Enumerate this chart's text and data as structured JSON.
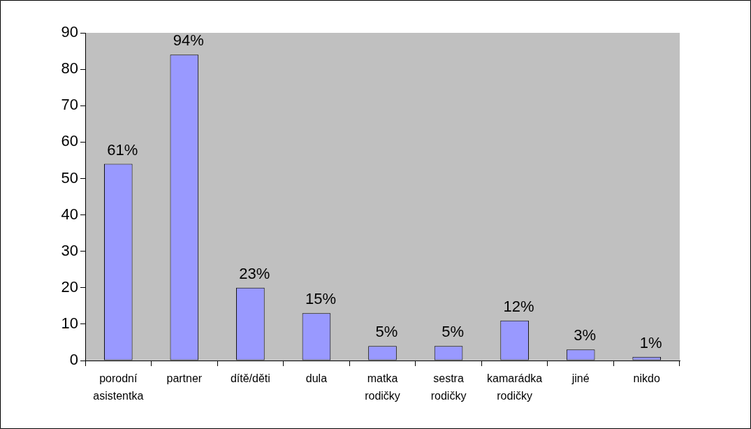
{
  "chart_data": {
    "type": "bar",
    "categories": [
      "porodní asistentka",
      "partner",
      "dítě/děti",
      "dula",
      "matka rodičky",
      "sestra rodičky",
      "kamarádka rodičky",
      "jiné",
      "nikdo"
    ],
    "values": [
      54,
      84,
      20,
      13,
      4,
      4,
      11,
      3,
      1
    ],
    "color": "#9999ff",
    "annotations": [
      {
        "text": "61%",
        "x": "porodní asistentka",
        "y": 54
      },
      {
        "text": "94%",
        "x": "partner",
        "y": 84
      },
      {
        "text": "23%",
        "x": "dítě/děti",
        "y": 20
      },
      {
        "text": "15%",
        "x": "dula",
        "y": 13
      },
      {
        "text": "5%",
        "x": "matka rodičky",
        "y": 4
      },
      {
        "text": "5%",
        "x": "sestra rodičky",
        "y": 4
      },
      {
        "text": "12%",
        "x": "kamarádka rodičky",
        "y": 11
      },
      {
        "text": "3%",
        "x": "jiné",
        "y": 3
      },
      {
        "text": "1%",
        "x": "nikdo",
        "y": 1
      }
    ],
    "ylim": [
      0,
      90
    ],
    "yticks": [
      0,
      10,
      20,
      30,
      40,
      50,
      60,
      70,
      80,
      90
    ],
    "grid": false,
    "legend": false
  }
}
